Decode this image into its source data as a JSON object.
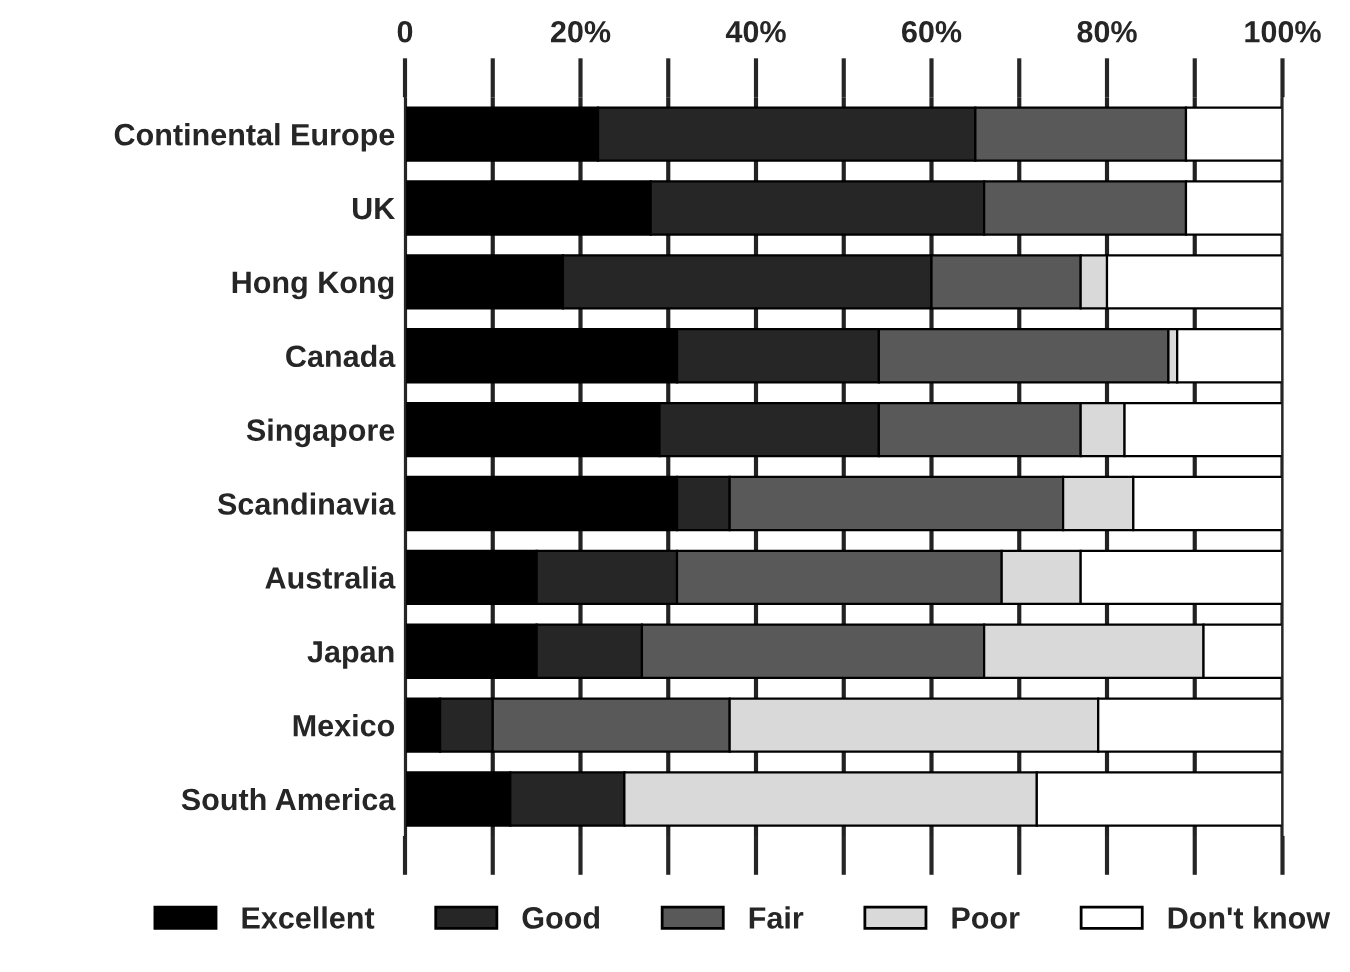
{
  "chart_data": {
    "type": "bar",
    "orientation": "horizontal",
    "stacked": true,
    "categories": [
      "Continental Europe",
      "UK",
      "Hong Kong",
      "Canada",
      "Singapore",
      "Scandinavia",
      "Australia",
      "Japan",
      "Mexico",
      "South America"
    ],
    "series": [
      {
        "name": "Excellent",
        "color": "#000000",
        "values": [
          22,
          28,
          18,
          31,
          29,
          31,
          15,
          15,
          4,
          12
        ]
      },
      {
        "name": "Good",
        "color": "#262626",
        "values": [
          43,
          38,
          42,
          23,
          25,
          6,
          16,
          12,
          6,
          13
        ]
      },
      {
        "name": "Fair",
        "color": "#595959",
        "values": [
          24,
          23,
          17,
          33,
          23,
          38,
          37,
          39,
          27,
          0
        ]
      },
      {
        "name": "Poor",
        "color": "#d9d9d9",
        "values": [
          0,
          0,
          3,
          1,
          5,
          8,
          9,
          25,
          42,
          47
        ]
      },
      {
        "name": "Don't know",
        "color": "#ffffff",
        "values": [
          11,
          11,
          20,
          12,
          18,
          17,
          23,
          9,
          21,
          28
        ]
      }
    ],
    "xlim": [
      0,
      100
    ],
    "xticks": [
      {
        "value": 0,
        "label": "0"
      },
      {
        "value": 10,
        "label": null
      },
      {
        "value": 20,
        "label": "20%"
      },
      {
        "value": 30,
        "label": null
      },
      {
        "value": 40,
        "label": "40%"
      },
      {
        "value": 50,
        "label": null
      },
      {
        "value": 60,
        "label": "60%"
      },
      {
        "value": 70,
        "label": null
      },
      {
        "value": 80,
        "label": "80%"
      },
      {
        "value": 90,
        "label": null
      },
      {
        "value": 100,
        "label": "100%"
      }
    ],
    "grid": "x",
    "legend": "bottom"
  }
}
